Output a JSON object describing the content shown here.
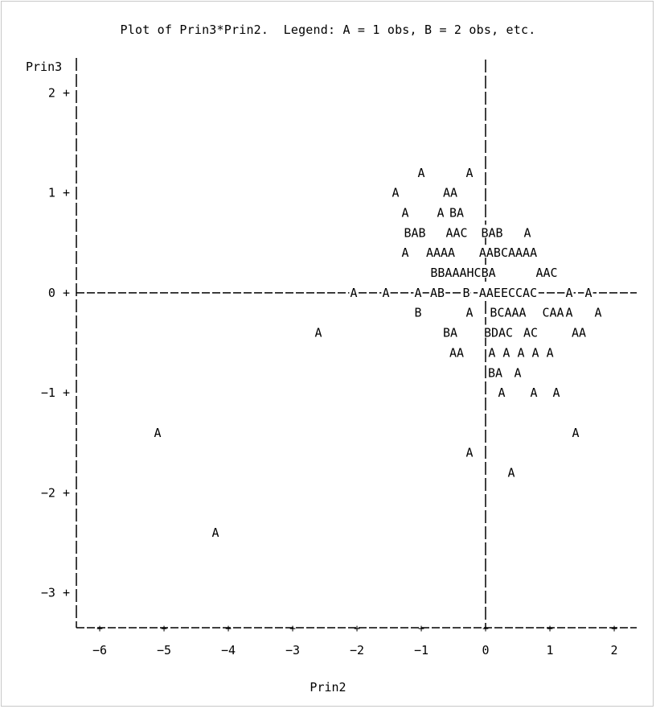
{
  "chart_data": {
    "type": "scatter",
    "title": "Plot of Prin3*Prin2.  Legend: A = 1 obs, B = 2 obs, etc.",
    "xlabel": "Prin2",
    "ylabel": "Prin3",
    "xlim": [
      -6.35,
      2.35
    ],
    "ylim": [
      -3.35,
      2.35
    ],
    "xticks": [
      -6,
      -5,
      -4,
      -3,
      -2,
      -1,
      0,
      1,
      2
    ],
    "yticks": [
      2,
      1,
      0,
      -1,
      -2,
      -3
    ],
    "rows": [
      {
        "y": 1.2,
        "text": "                      A    A "
      },
      {
        "y": 1.0,
        "text": "                     A    AA "
      },
      {
        "y": 0.8,
        "text": "                      A  A BA "
      },
      {
        "y": 0.6,
        "text": "                      BAB  AAC  BAB  A"
      },
      {
        "y": 0.4,
        "text": "                      A  AAAA AABCAAAA"
      },
      {
        "y": 0.2,
        "text": "                        BBAAAHCBA AAC"
      },
      {
        "y": 0.0,
        "text": "                 A--A--A-AB--B-AAEECCAC----A-A"
      },
      {
        "y": -0.2,
        "text": "                      B    A BCAAA CAA A   A"
      },
      {
        "y": -0.4,
        "text": "            A             BA  BDAC AC     AA"
      },
      {
        "y": -0.6,
        "text": "                          AA  A A A A A"
      },
      {
        "y": -0.8,
        "text": "                              BA A"
      },
      {
        "y": -1.0,
        "text": "                               A   A  A"
      },
      {
        "y": -1.4,
        "text": "  A                                       A"
      },
      {
        "y": -1.6,
        "text": "                           A"
      },
      {
        "y": -1.8,
        "text": "                               A"
      },
      {
        "y": -2.4,
        "text": "      A"
      }
    ],
    "point_lines": [
      {
        "x": -1.0,
        "y": 1.2,
        "label": "A"
      },
      {
        "x": -0.25,
        "y": 1.2,
        "label": "A"
      },
      {
        "x": -1.4,
        "y": 1.0,
        "label": "A"
      },
      {
        "x": -0.55,
        "y": 1.0,
        "label": "AA"
      },
      {
        "x": -1.25,
        "y": 0.8,
        "label": "A"
      },
      {
        "x": -0.7,
        "y": 0.8,
        "label": "A"
      },
      {
        "x": -0.45,
        "y": 0.8,
        "label": "BA"
      },
      {
        "x": -1.1,
        "y": 0.6,
        "label": "BAB"
      },
      {
        "x": -0.45,
        "y": 0.6,
        "label": "AAC"
      },
      {
        "x": 0.1,
        "y": 0.6,
        "label": "BAB"
      },
      {
        "x": 0.65,
        "y": 0.6,
        "label": "A"
      },
      {
        "x": -1.25,
        "y": 0.4,
        "label": "A"
      },
      {
        "x": -0.7,
        "y": 0.4,
        "label": "AAAA"
      },
      {
        "x": 0.35,
        "y": 0.4,
        "label": "AABCAAAA"
      },
      {
        "x": -0.35,
        "y": 0.2,
        "label": "BBAAAHCBA"
      },
      {
        "x": 0.95,
        "y": 0.2,
        "label": "AAC"
      },
      {
        "x": -2.05,
        "y": 0.0,
        "label": "A"
      },
      {
        "x": -1.55,
        "y": 0.0,
        "label": "A"
      },
      {
        "x": -1.05,
        "y": 0.0,
        "label": "A"
      },
      {
        "x": -0.75,
        "y": 0.0,
        "label": "AB"
      },
      {
        "x": -0.3,
        "y": 0.0,
        "label": "B"
      },
      {
        "x": 0.35,
        "y": 0.0,
        "label": "AAEECCAC"
      },
      {
        "x": 1.3,
        "y": 0.0,
        "label": "A"
      },
      {
        "x": 1.6,
        "y": 0.0,
        "label": "A"
      },
      {
        "x": -1.05,
        "y": -0.2,
        "label": "B"
      },
      {
        "x": -0.25,
        "y": -0.2,
        "label": "A"
      },
      {
        "x": 0.35,
        "y": -0.2,
        "label": "BCAAA"
      },
      {
        "x": 1.05,
        "y": -0.2,
        "label": "CAA"
      },
      {
        "x": 1.3,
        "y": -0.2,
        "label": "A"
      },
      {
        "x": 1.75,
        "y": -0.2,
        "label": "A"
      },
      {
        "x": -2.6,
        "y": -0.4,
        "label": "A"
      },
      {
        "x": -0.55,
        "y": -0.4,
        "label": "BA"
      },
      {
        "x": 0.2,
        "y": -0.4,
        "label": "BDAC"
      },
      {
        "x": 0.7,
        "y": -0.4,
        "label": "AC"
      },
      {
        "x": 1.45,
        "y": -0.4,
        "label": "AA"
      },
      {
        "x": -0.45,
        "y": -0.6,
        "label": "AA"
      },
      {
        "x": 0.55,
        "y": -0.6,
        "label": "A A A A A"
      },
      {
        "x": 0.15,
        "y": -0.8,
        "label": "BA"
      },
      {
        "x": 0.5,
        "y": -0.8,
        "label": "A"
      },
      {
        "x": 0.25,
        "y": -1.0,
        "label": "A"
      },
      {
        "x": 0.75,
        "y": -1.0,
        "label": "A"
      },
      {
        "x": 1.1,
        "y": -1.0,
        "label": "A"
      },
      {
        "x": -5.1,
        "y": -1.4,
        "label": "A"
      },
      {
        "x": 1.4,
        "y": -1.4,
        "label": "A"
      },
      {
        "x": -0.25,
        "y": -1.6,
        "label": "A"
      },
      {
        "x": 0.4,
        "y": -1.8,
        "label": "A"
      },
      {
        "x": -4.2,
        "y": -2.4,
        "label": "A"
      }
    ]
  }
}
